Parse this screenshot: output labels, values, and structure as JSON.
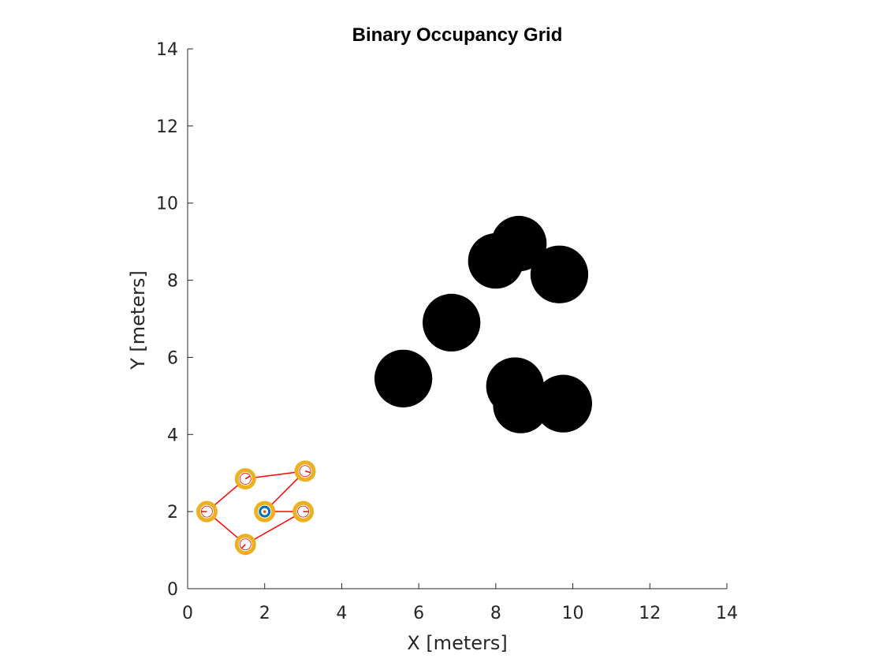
{
  "chart_data": {
    "type": "scatter",
    "title": "Binary Occupancy Grid",
    "xlabel": "X [meters]",
    "ylabel": "Y [meters]",
    "xlim": [
      0,
      14
    ],
    "ylim": [
      0,
      14
    ],
    "xticks": [
      "0",
      "2",
      "4",
      "6",
      "8",
      "10",
      "12",
      "14"
    ],
    "yticks": [
      "0",
      "2",
      "4",
      "6",
      "8",
      "10",
      "12",
      "14"
    ],
    "grid": false,
    "obstacles": [
      {
        "x": 5.6,
        "y": 5.45,
        "r": 0.75
      },
      {
        "x": 6.85,
        "y": 6.9,
        "r": 0.75
      },
      {
        "x": 8.0,
        "y": 8.5,
        "r": 0.72
      },
      {
        "x": 8.6,
        "y": 8.95,
        "r": 0.72
      },
      {
        "x": 9.65,
        "y": 8.15,
        "r": 0.75
      },
      {
        "x": 8.5,
        "y": 5.25,
        "r": 0.75
      },
      {
        "x": 8.65,
        "y": 4.75,
        "r": 0.72
      },
      {
        "x": 9.75,
        "y": 4.8,
        "r": 0.75
      }
    ],
    "robots": [
      {
        "x": 0.5,
        "y": 2.0,
        "heading_deg": 180
      },
      {
        "x": 1.5,
        "y": 2.85,
        "heading_deg": 30
      },
      {
        "x": 3.05,
        "y": 3.05,
        "heading_deg": -15
      },
      {
        "x": 3.0,
        "y": 2.0,
        "heading_deg": 0
      },
      {
        "x": 1.5,
        "y": 1.15,
        "heading_deg": -135
      }
    ],
    "leader": {
      "x": 2.0,
      "y": 2.0
    },
    "links": [
      [
        0,
        1
      ],
      [
        1,
        2
      ],
      [
        0,
        4
      ],
      [
        4,
        3
      ],
      [
        3,
        "leader"
      ],
      [
        2,
        "leader"
      ]
    ],
    "colors": {
      "obstacle": "#000000",
      "robot_ring": "#EDB120",
      "link": "#FF0000",
      "leader_outer": "#0072BD",
      "leader_inner": "#D95319",
      "axis": "#262626"
    }
  }
}
